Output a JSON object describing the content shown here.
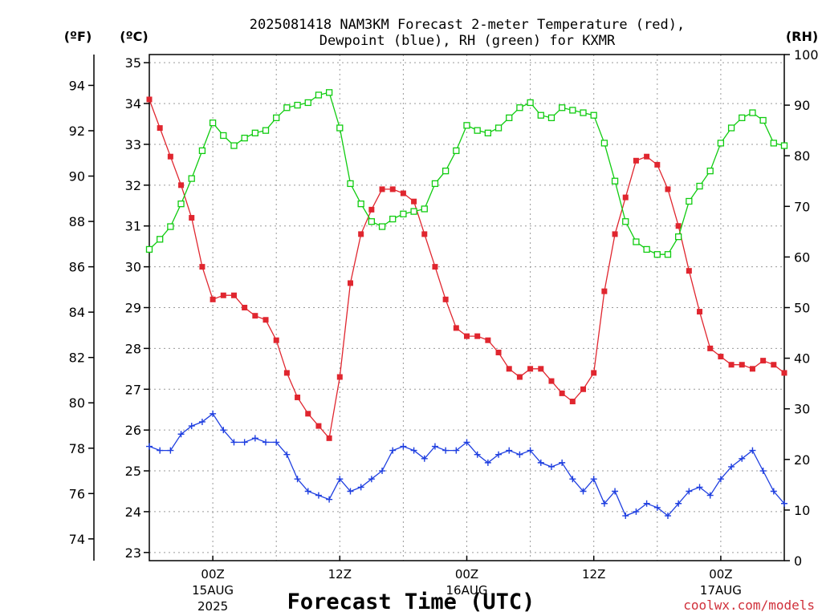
{
  "chart_data": {
    "type": "line",
    "title_line1": "2025081418 NAM3KM Forecast 2-meter Temperature (red),",
    "title_line2": "Dewpoint (blue), RH (green) for KXMR",
    "xlabel": "Forecast Time (UTC)",
    "watermark": "coolwx.com/models",
    "axis_labels": {
      "fahrenheit": "(ºF)",
      "celsius": "(ºC)",
      "rh": "(RH)"
    },
    "celsius_axis": {
      "range": [
        22.8,
        35.2
      ],
      "ticks": [
        23,
        24,
        25,
        26,
        27,
        28,
        29,
        30,
        31,
        32,
        33,
        34,
        35
      ]
    },
    "fahrenheit_axis": {
      "ticks": [
        74,
        76,
        78,
        80,
        82,
        84,
        86,
        88,
        90,
        92,
        94
      ]
    },
    "rh_axis": {
      "range": [
        0,
        100
      ],
      "ticks": [
        0,
        10,
        20,
        30,
        40,
        50,
        60,
        70,
        80,
        90,
        100
      ]
    },
    "x_axis": {
      "range_hours": [
        -6,
        54
      ],
      "ticks": [
        {
          "h": 0,
          "l1": "00Z",
          "l2": "15AUG",
          "l3": "2025"
        },
        {
          "h": 12,
          "l1": "12Z",
          "l2": "",
          "l3": ""
        },
        {
          "h": 24,
          "l1": "00Z",
          "l2": "16AUG",
          "l3": ""
        },
        {
          "h": 36,
          "l1": "12Z",
          "l2": "",
          "l3": ""
        },
        {
          "h": 48,
          "l1": "00Z",
          "l2": "17AUG",
          "l3": ""
        }
      ]
    },
    "grid": true,
    "colors": {
      "temperature": "#e0262f",
      "dewpoint": "#1f3fe0",
      "rh": "#10cc10"
    },
    "series": [
      {
        "name": "Temperature (red)",
        "unit": "C",
        "marker": "filled-square",
        "x": [
          -6,
          -5,
          -4,
          -3,
          -2,
          -1,
          0,
          1,
          2,
          3,
          4,
          5,
          6,
          7,
          8,
          9,
          10,
          11,
          12,
          13,
          14,
          15,
          16,
          17,
          18,
          19,
          20,
          21,
          22,
          23,
          24,
          25,
          26,
          27,
          28,
          29,
          30,
          31,
          32,
          33,
          34,
          35,
          36,
          37,
          38,
          39,
          40,
          41,
          42,
          43,
          44,
          45,
          46,
          47,
          48,
          49,
          50,
          51,
          52,
          53,
          54
        ],
        "values": [
          34.1,
          33.4,
          32.7,
          32.0,
          31.2,
          30.0,
          29.2,
          29.3,
          29.3,
          29.0,
          28.8,
          28.7,
          28.2,
          27.4,
          26.8,
          26.4,
          26.1,
          25.8,
          27.3,
          29.6,
          30.8,
          31.4,
          31.9,
          31.9,
          31.8,
          31.6,
          30.8,
          30.0,
          29.2,
          28.5,
          28.3,
          28.3,
          28.2,
          27.9,
          27.5,
          27.3,
          27.5,
          27.5,
          27.2,
          26.9,
          26.7,
          27.0,
          27.4,
          29.4,
          30.8,
          31.7,
          32.6,
          32.7,
          32.5,
          31.9,
          31.0,
          29.9,
          28.9,
          28.0,
          27.8,
          27.6,
          27.6,
          27.5,
          27.7,
          27.6,
          27.4
        ]
      },
      {
        "name": "Dewpoint (blue)",
        "unit": "C",
        "marker": "plus",
        "x": [
          -6,
          -5,
          -4,
          -3,
          -2,
          -1,
          0,
          1,
          2,
          3,
          4,
          5,
          6,
          7,
          8,
          9,
          10,
          11,
          12,
          13,
          14,
          15,
          16,
          17,
          18,
          19,
          20,
          21,
          22,
          23,
          24,
          25,
          26,
          27,
          28,
          29,
          30,
          31,
          32,
          33,
          34,
          35,
          36,
          37,
          38,
          39,
          40,
          41,
          42,
          43,
          44,
          45,
          46,
          47,
          48,
          49,
          50,
          51,
          52,
          53,
          54
        ],
        "values": [
          25.6,
          25.5,
          25.5,
          25.9,
          26.1,
          26.2,
          26.4,
          26.0,
          25.7,
          25.7,
          25.8,
          25.7,
          25.7,
          25.4,
          24.8,
          24.5,
          24.4,
          24.3,
          24.8,
          24.5,
          24.6,
          24.8,
          25.0,
          25.5,
          25.6,
          25.5,
          25.3,
          25.6,
          25.5,
          25.5,
          25.7,
          25.4,
          25.2,
          25.4,
          25.5,
          25.4,
          25.5,
          25.2,
          25.1,
          25.2,
          24.8,
          24.5,
          24.8,
          24.2,
          24.5,
          23.9,
          24.0,
          24.2,
          24.1,
          23.9,
          24.2,
          24.5,
          24.6,
          24.4,
          24.8,
          25.1,
          25.3,
          25.5,
          25.0,
          24.5,
          24.2
        ]
      },
      {
        "name": "RH (green)",
        "unit": "%",
        "marker": "open-square",
        "x": [
          -6,
          -5,
          -4,
          -3,
          -2,
          -1,
          0,
          1,
          2,
          3,
          4,
          5,
          6,
          7,
          8,
          9,
          10,
          11,
          12,
          13,
          14,
          15,
          16,
          17,
          18,
          19,
          20,
          21,
          22,
          23,
          24,
          25,
          26,
          27,
          28,
          29,
          30,
          31,
          32,
          33,
          34,
          35,
          36,
          37,
          38,
          39,
          40,
          41,
          42,
          43,
          44,
          45,
          46,
          47,
          48,
          49,
          50,
          51,
          52,
          53,
          54
        ],
        "values": [
          61.5,
          63.5,
          66.0,
          70.5,
          75.5,
          81.0,
          86.5,
          84.0,
          82.0,
          83.5,
          84.5,
          85.0,
          87.5,
          89.5,
          90.0,
          90.5,
          92.0,
          92.5,
          85.5,
          74.5,
          70.5,
          67.0,
          66.0,
          67.5,
          68.5,
          69.0,
          69.5,
          74.5,
          77.0,
          81.0,
          86.0,
          85.0,
          84.5,
          85.5,
          87.5,
          89.5,
          90.5,
          88.0,
          87.5,
          89.5,
          89.0,
          88.5,
          88.0,
          82.5,
          75.0,
          67.0,
          63.0,
          61.5,
          60.5,
          60.5,
          64.0,
          71.0,
          74.0,
          77.0,
          82.5,
          85.5,
          87.5,
          88.5,
          87.0,
          82.5,
          82.0
        ]
      }
    ]
  }
}
